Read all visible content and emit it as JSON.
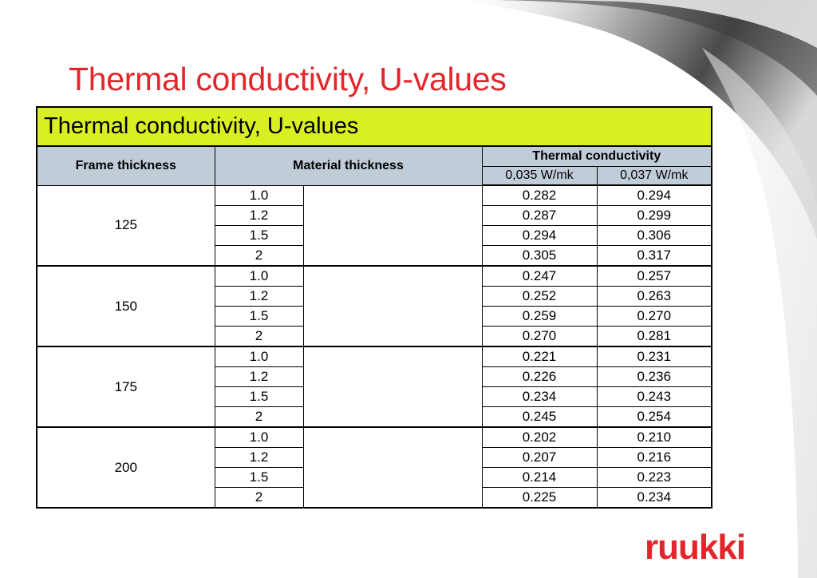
{
  "slide": {
    "title": "Thermal conductivity, U-values"
  },
  "table": {
    "banner": "Thermal conductivity, U-values",
    "headers": {
      "frame_thickness": "Frame thickness",
      "material_thickness": "Material thickness",
      "thermal_conductivity": "Thermal conductivity",
      "tc_col1": "0,035 W/mk",
      "tc_col2": "0,037 W/mk"
    },
    "groups": [
      {
        "frame": "125",
        "rows": [
          {
            "material": "1.0",
            "v1": "0.282",
            "v2": "0.294"
          },
          {
            "material": "1.2",
            "v1": "0.287",
            "v2": "0.299"
          },
          {
            "material": "1.5",
            "v1": "0.294",
            "v2": "0.306"
          },
          {
            "material": "2",
            "v1": "0.305",
            "v2": "0.317"
          }
        ]
      },
      {
        "frame": "150",
        "rows": [
          {
            "material": "1.0",
            "v1": "0.247",
            "v2": "0.257"
          },
          {
            "material": "1.2",
            "v1": "0.252",
            "v2": "0.263"
          },
          {
            "material": "1.5",
            "v1": "0.259",
            "v2": "0.270"
          },
          {
            "material": "2",
            "v1": "0.270",
            "v2": "0.281"
          }
        ]
      },
      {
        "frame": "175",
        "rows": [
          {
            "material": "1.0",
            "v1": "0.221",
            "v2": "0.231"
          },
          {
            "material": "1.2",
            "v1": "0.226",
            "v2": "0.236"
          },
          {
            "material": "1.5",
            "v1": "0.234",
            "v2": "0.243"
          },
          {
            "material": "2",
            "v1": "0.245",
            "v2": "0.254"
          }
        ]
      },
      {
        "frame": "200",
        "rows": [
          {
            "material": "1.0",
            "v1": "0.202",
            "v2": "0.210"
          },
          {
            "material": "1.2",
            "v1": "0.207",
            "v2": "0.216"
          },
          {
            "material": "1.5",
            "v1": "0.214",
            "v2": "0.223"
          },
          {
            "material": "2",
            "v1": "0.225",
            "v2": "0.234"
          }
        ]
      }
    ]
  },
  "logo": {
    "text": "ruukki",
    "color": "#e3262b"
  },
  "colors": {
    "title": "#e3262b",
    "banner_bg": "#d8ef21",
    "header_bg": "#c1ccd9"
  }
}
